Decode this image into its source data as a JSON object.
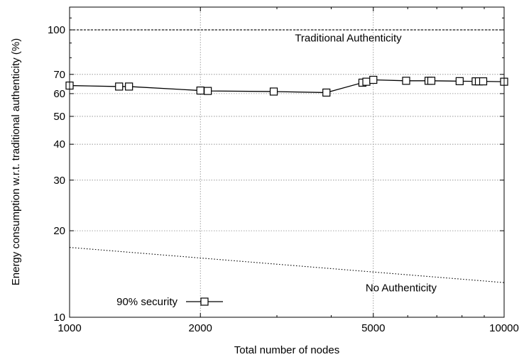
{
  "chart_data": {
    "type": "line",
    "title": "",
    "xlabel": "Total number of nodes",
    "ylabel": "Energy consumption w.r.t. traditional authenticity  (%)",
    "x_scale": "log",
    "y_scale": "log",
    "xlim": [
      1000,
      10000
    ],
    "ylim": [
      10,
      120
    ],
    "x_ticks": [
      1000,
      2000,
      5000,
      10000
    ],
    "x_tick_labels": [
      "1000",
      "2000",
      "5000",
      "10000"
    ],
    "y_ticks": [
      10,
      20,
      30,
      40,
      50,
      60,
      70,
      100
    ],
    "y_tick_labels": [
      "10",
      "20",
      "30",
      "40",
      "50",
      "60",
      "70",
      "100"
    ],
    "grid": true,
    "legend_position": "bottom-left",
    "series": [
      {
        "name": "90% security",
        "marker": "open-square",
        "x": [
          1000,
          1300,
          1370,
          2000,
          2080,
          2950,
          3900,
          4720,
          4820,
          5000,
          5950,
          6700,
          6800,
          7900,
          8600,
          8750,
          8950,
          10000
        ],
        "y": [
          64,
          63.5,
          63.5,
          61.5,
          61.3,
          61,
          60.5,
          65.5,
          66,
          67,
          66.5,
          66.5,
          66.5,
          66.3,
          66.2,
          66.2,
          66.2,
          66
        ]
      }
    ],
    "reference_lines": [
      {
        "name": "Traditional Authenticity",
        "style": "dashed",
        "x": [
          1000,
          10000
        ],
        "y": [
          100,
          100
        ]
      },
      {
        "name": "No Authenticity",
        "style": "dotted",
        "x": [
          1000,
          10000
        ],
        "y": [
          17.5,
          13.2
        ]
      }
    ],
    "annotations": [
      {
        "text": "Traditional Authenticity",
        "x": 3300,
        "y": 91
      },
      {
        "text": "No Authenticity",
        "x": 4800,
        "y": 12.3
      }
    ]
  }
}
